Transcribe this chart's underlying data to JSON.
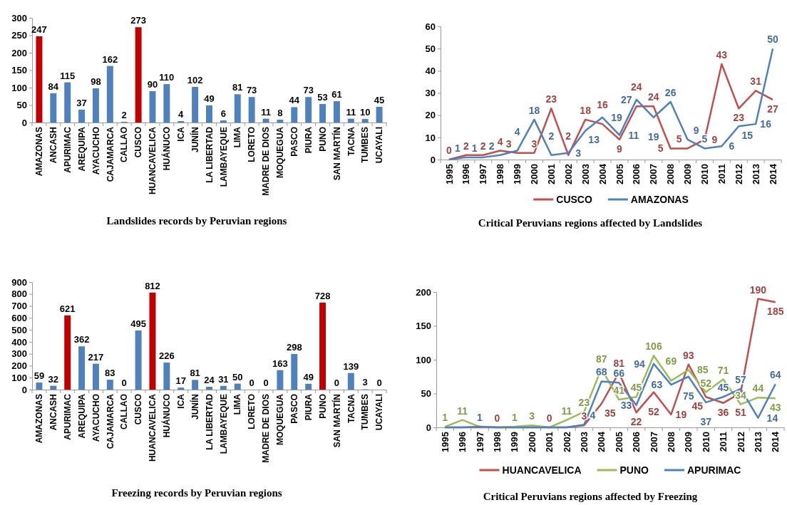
{
  "chart_data": [
    {
      "type": "bar",
      "title": "Landslides records by Peruvian regions",
      "categories": [
        "AMAZONAS",
        "ANCASH",
        "APURIMAC",
        "AREQUIPA",
        "AYACUCHO",
        "CAJAMARCA",
        "CALLAO",
        "CUSCO",
        "HUANCAVELICA",
        "HUÁNUCO",
        "ICA",
        "JUNÍN",
        "LA LIBERTAD",
        "LAMBAYEQUE",
        "LIMA",
        "LORETO",
        "MADRE DE DIOS",
        "MOQUEGUA",
        "PASCO",
        "PIURA",
        "PUNO",
        "SAN MARTÍN",
        "TACNA",
        "TUMBES",
        "UCAYALI"
      ],
      "values": [
        247,
        84,
        115,
        37,
        98,
        162,
        2,
        273,
        90,
        110,
        4,
        102,
        49,
        6,
        81,
        73,
        11,
        8,
        44,
        73,
        53,
        61,
        11,
        10,
        45
      ],
      "colors": [
        "#c00000",
        "#4f81bd",
        "#4f81bd",
        "#4f81bd",
        "#4f81bd",
        "#4f81bd",
        "#4f81bd",
        "#c00000",
        "#4f81bd",
        "#4f81bd",
        "#4f81bd",
        "#4f81bd",
        "#4f81bd",
        "#4f81bd",
        "#4f81bd",
        "#4f81bd",
        "#4f81bd",
        "#4f81bd",
        "#4f81bd",
        "#4f81bd",
        "#4f81bd",
        "#4f81bd",
        "#4f81bd",
        "#4f81bd",
        "#4f81bd"
      ],
      "ylim": [
        0,
        300
      ],
      "yticks": [
        0,
        50,
        100,
        150,
        200,
        250,
        300
      ],
      "data_labels": true
    },
    {
      "type": "line",
      "title": "Critical Peruvians regions affected by Landslides",
      "categories": [
        "1995",
        "1996",
        "1997",
        "1998",
        "1999",
        "2000",
        "2001",
        "2002",
        "2003",
        "2004",
        "2005",
        "2006",
        "2007",
        "2008",
        "2009",
        "2010",
        "2011",
        "2012",
        "2013",
        "2014"
      ],
      "series": [
        {
          "name": "CUSCO",
          "color": "#c0504d",
          "values": [
            0,
            2,
            2,
            4,
            3,
            3,
            23,
            2,
            18,
            16,
            9,
            24,
            24,
            5,
            5,
            9,
            43,
            23,
            31,
            27
          ],
          "value_labels": [
            "0",
            "2",
            "2",
            "4",
            "3",
            "3",
            "23",
            "2",
            "18",
            "16",
            "9",
            "24",
            "24",
            "5",
            "5",
            "9",
            "43",
            "23",
            "31",
            "27"
          ]
        },
        {
          "name": "AMAZONAS",
          "color": "#4f81bd",
          "values": [
            0,
            1,
            1,
            2,
            4,
            18,
            2,
            3,
            13,
            19,
            11,
            27,
            19,
            26,
            9,
            5,
            6,
            15,
            16,
            50
          ],
          "value_labels": [
            null,
            "1",
            "1",
            "2",
            "4",
            "18",
            "2",
            "3",
            "13",
            "19",
            "11",
            "27",
            "19",
            "26",
            "9",
            "5",
            "6",
            "15",
            "16",
            "50"
          ]
        }
      ],
      "ylim": [
        0,
        60
      ],
      "yticks": [
        0,
        10,
        20,
        30,
        40,
        50,
        60
      ],
      "legend": "bottom"
    },
    {
      "type": "bar",
      "title": "Freezing records by Peruvian regions",
      "categories": [
        "AMAZONAS",
        "ANCASH",
        "APURIMAC",
        "AREQUIPA",
        "AYACUCHO",
        "CAJAMARCA",
        "CALLAO",
        "CUSCO",
        "HUANCAVELICA",
        "HUÁNUCO",
        "ICA",
        "JUNÍN",
        "LA LIBERTAD",
        "LAMBAYEQUE",
        "LIMA",
        "LORETO",
        "MADRE DE DIOS",
        "MOQUEGUA",
        "PASCO",
        "PIURA",
        "PUNO",
        "SAN MARTÍN",
        "TACNA",
        "TUMBES",
        "UCAYALI"
      ],
      "values": [
        59,
        32,
        621,
        362,
        217,
        83,
        0,
        495,
        812,
        226,
        17,
        81,
        24,
        31,
        50,
        0,
        0,
        163,
        298,
        49,
        728,
        0,
        139,
        3,
        0
      ],
      "colors": [
        "#4f81bd",
        "#4f81bd",
        "#c00000",
        "#4f81bd",
        "#4f81bd",
        "#4f81bd",
        "#4f81bd",
        "#4f81bd",
        "#c00000",
        "#4f81bd",
        "#4f81bd",
        "#4f81bd",
        "#4f81bd",
        "#4f81bd",
        "#4f81bd",
        "#4f81bd",
        "#4f81bd",
        "#4f81bd",
        "#4f81bd",
        "#4f81bd",
        "#c00000",
        "#4f81bd",
        "#4f81bd",
        "#4f81bd",
        "#4f81bd"
      ],
      "ylim": [
        0,
        900
      ],
      "yticks": [
        0,
        100,
        200,
        300,
        400,
        500,
        600,
        700,
        800,
        900
      ],
      "data_labels": true
    },
    {
      "type": "line",
      "title": "Critical Peruvians regions affected by  Freezing",
      "categories": [
        "1995",
        "1996",
        "1997",
        "1998",
        "1999",
        "2000",
        "2001",
        "2002",
        "2003",
        "2004",
        "2005",
        "2006",
        "2007",
        "2008",
        "2009",
        "2010",
        "2011",
        "2012",
        "2013",
        "2014"
      ],
      "series": [
        {
          "name": "HUANCAVELICA",
          "color": "#c0504d",
          "values": [
            0,
            0,
            0,
            0,
            0,
            0,
            0,
            0,
            3,
            35,
            81,
            22,
            52,
            19,
            93,
            45,
            36,
            51,
            190,
            185
          ],
          "value_labels": [
            null,
            null,
            null,
            "0",
            null,
            null,
            "0",
            null,
            "3",
            "35",
            "81",
            "22",
            "52",
            "19",
            "93",
            "45",
            "36",
            "51",
            "190",
            "185"
          ]
        },
        {
          "name": "PUNO",
          "color": "#9bbb59",
          "values": [
            1,
            11,
            1,
            0,
            1,
            3,
            0,
            11,
            23,
            87,
            41,
            45,
            106,
            69,
            85,
            52,
            71,
            34,
            44,
            43
          ],
          "value_labels": [
            "1",
            "11",
            null,
            null,
            "1",
            "3",
            null,
            "11",
            "23",
            "87",
            "41",
            "45",
            "106",
            "69",
            "85",
            "52",
            "71",
            "34",
            "44",
            "43"
          ]
        },
        {
          "name": "APURIMAC",
          "color": "#4f81bd",
          "values": [
            0,
            0,
            1,
            0,
            0,
            0,
            0,
            0,
            4,
            68,
            66,
            33,
            94,
            63,
            75,
            37,
            45,
            57,
            14,
            64
          ],
          "value_labels": [
            null,
            null,
            "1",
            null,
            null,
            null,
            null,
            null,
            "4",
            "68",
            "66",
            "33",
            "94",
            "63",
            "75",
            "37",
            "45",
            "57",
            "14",
            "64"
          ]
        }
      ],
      "ylim": [
        0,
        200
      ],
      "yticks": [
        0,
        50,
        100,
        150,
        200
      ],
      "legend": "bottom"
    }
  ]
}
